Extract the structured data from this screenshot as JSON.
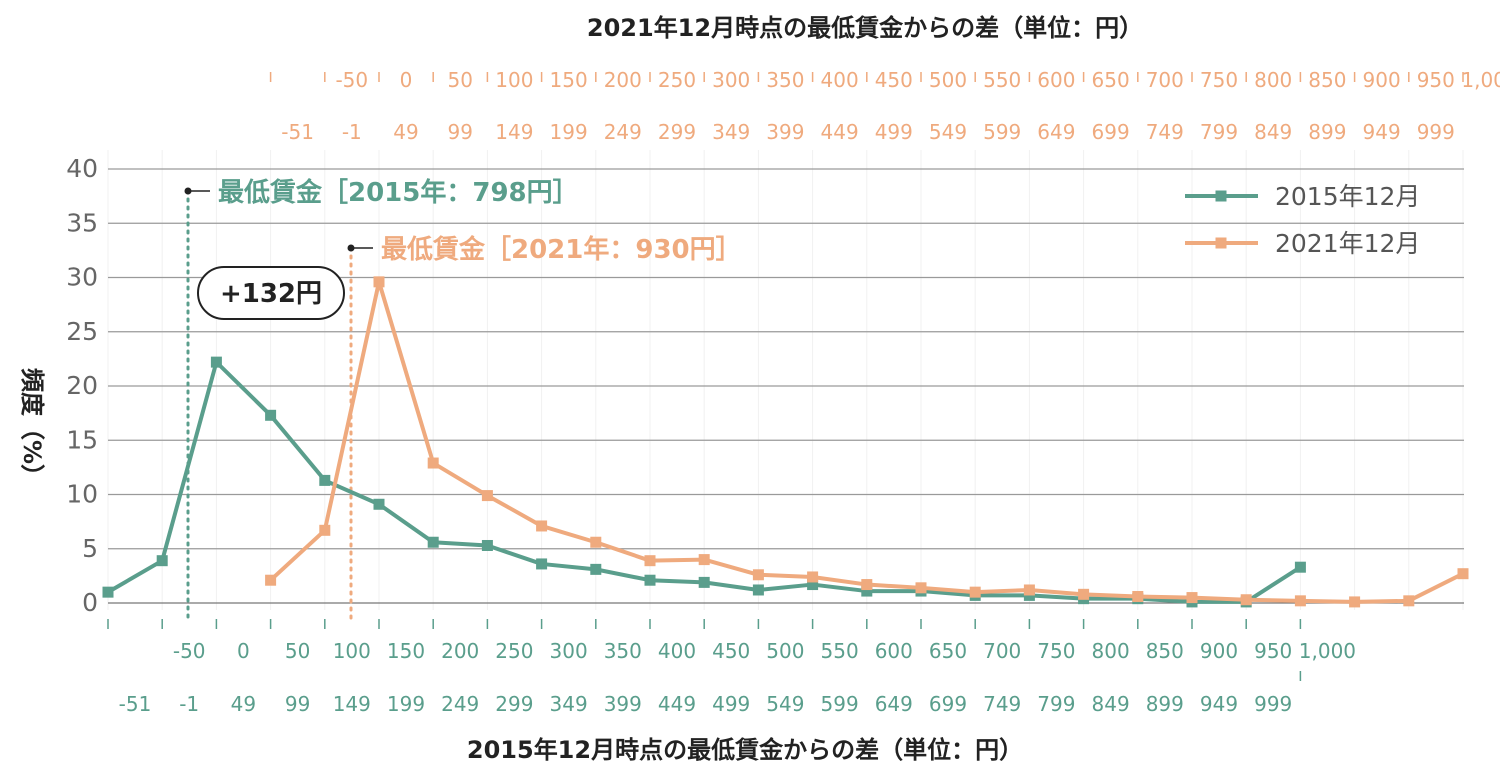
{
  "chart_data": {
    "type": "line",
    "title_top": "2021年12月時点の最低賃金からの差（単位：円）",
    "xlabel": "2015年12月時点の最低賃金からの差（単位：円）",
    "ylabel": "頻度（%）",
    "ylim": [
      0,
      40
    ],
    "y_ticks": [
      0,
      5,
      10,
      15,
      20,
      25,
      30,
      35,
      40
    ],
    "grid": true,
    "legend_position": "top-right",
    "bottom_axis_ticks": [
      {
        "top": "",
        "bottom": "-51"
      },
      {
        "top": "-50",
        "bottom": "-1"
      },
      {
        "top": "0",
        "bottom": "49"
      },
      {
        "top": "50",
        "bottom": "99"
      },
      {
        "top": "100",
        "bottom": "149"
      },
      {
        "top": "150",
        "bottom": "199"
      },
      {
        "top": "200",
        "bottom": "249"
      },
      {
        "top": "250",
        "bottom": "299"
      },
      {
        "top": "300",
        "bottom": "349"
      },
      {
        "top": "350",
        "bottom": "399"
      },
      {
        "top": "400",
        "bottom": "449"
      },
      {
        "top": "450",
        "bottom": "499"
      },
      {
        "top": "500",
        "bottom": "549"
      },
      {
        "top": "550",
        "bottom": "599"
      },
      {
        "top": "600",
        "bottom": "649"
      },
      {
        "top": "650",
        "bottom": "699"
      },
      {
        "top": "700",
        "bottom": "749"
      },
      {
        "top": "750",
        "bottom": "799"
      },
      {
        "top": "800",
        "bottom": "849"
      },
      {
        "top": "850",
        "bottom": "899"
      },
      {
        "top": "900",
        "bottom": "949"
      },
      {
        "top": "950",
        "bottom": "999"
      },
      {
        "top": "1,000",
        "bottom": ""
      }
    ],
    "top_axis_ticks": [
      {
        "top": "",
        "bottom": "-51"
      },
      {
        "top": "-50",
        "bottom": "-1"
      },
      {
        "top": "0",
        "bottom": "49"
      },
      {
        "top": "50",
        "bottom": "99"
      },
      {
        "top": "100",
        "bottom": "149"
      },
      {
        "top": "150",
        "bottom": "199"
      },
      {
        "top": "200",
        "bottom": "249"
      },
      {
        "top": "250",
        "bottom": "299"
      },
      {
        "top": "300",
        "bottom": "349"
      },
      {
        "top": "350",
        "bottom": "399"
      },
      {
        "top": "400",
        "bottom": "449"
      },
      {
        "top": "450",
        "bottom": "499"
      },
      {
        "top": "500",
        "bottom": "549"
      },
      {
        "top": "550",
        "bottom": "599"
      },
      {
        "top": "600",
        "bottom": "649"
      },
      {
        "top": "650",
        "bottom": "699"
      },
      {
        "top": "700",
        "bottom": "749"
      },
      {
        "top": "750",
        "bottom": "799"
      },
      {
        "top": "800",
        "bottom": "849"
      },
      {
        "top": "850",
        "bottom": "899"
      },
      {
        "top": "900",
        "bottom": "949"
      },
      {
        "top": "950",
        "bottom": "999"
      },
      {
        "top": "1,000",
        "bottom": ""
      }
    ],
    "series": [
      {
        "name": "2015年12月",
        "color": "#5a9e8c",
        "values": [
          1.0,
          3.9,
          22.2,
          17.3,
          11.3,
          9.1,
          5.6,
          5.3,
          3.6,
          3.1,
          2.1,
          1.9,
          1.2,
          1.7,
          1.1,
          1.1,
          0.7,
          0.7,
          0.4,
          0.4,
          0.1,
          0.1,
          3.3,
          null,
          null,
          null,
          null
        ]
      },
      {
        "name": "2021年12月",
        "color": "#efaa7e",
        "values": [
          null,
          null,
          null,
          2.1,
          6.7,
          29.6,
          12.9,
          9.9,
          7.1,
          5.6,
          3.9,
          4.0,
          2.6,
          2.4,
          1.7,
          1.4,
          1.0,
          1.2,
          0.8,
          0.6,
          0.5,
          0.3,
          0.2,
          0.1,
          0.2,
          2.7
        ]
      }
    ],
    "annotations": {
      "mw2015": {
        "label": "最低賃金［2015年：798円］",
        "color": "#5a9e8c"
      },
      "mw2021": {
        "label": "最低賃金［2021年：930円］",
        "color": "#efaa7e"
      },
      "difference": "+132円"
    }
  }
}
